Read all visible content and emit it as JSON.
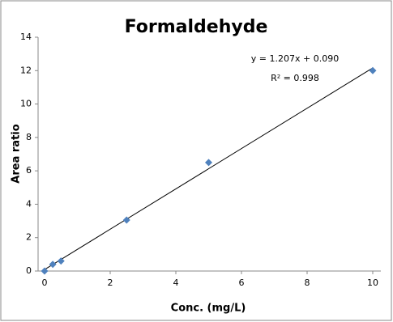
{
  "chart_data": {
    "type": "scatter",
    "title": "Formaldehyde",
    "x_label": "Conc. (mg/L)",
    "y_label": "Area ratio",
    "series": [
      {
        "name": "Formaldehyde",
        "color": "#4f81bd",
        "x": [
          0,
          0.25,
          0.5,
          2.5,
          5,
          10
        ],
        "values": [
          0,
          0.4,
          0.6,
          3.05,
          6.5,
          12.0
        ]
      }
    ],
    "trendline": {
      "slope": 1.207,
      "intercept": 0.09,
      "label": "y = 1.207x + 0.090",
      "r2_label": "R² = 0.998",
      "color": "#000000"
    },
    "xlim": [
      0,
      10
    ],
    "xticks": [
      0,
      2,
      4,
      6,
      8,
      10
    ],
    "ylim": [
      0,
      14
    ],
    "yticks": [
      0,
      2,
      4,
      6,
      8,
      10,
      12,
      14
    ],
    "grid": false
  }
}
